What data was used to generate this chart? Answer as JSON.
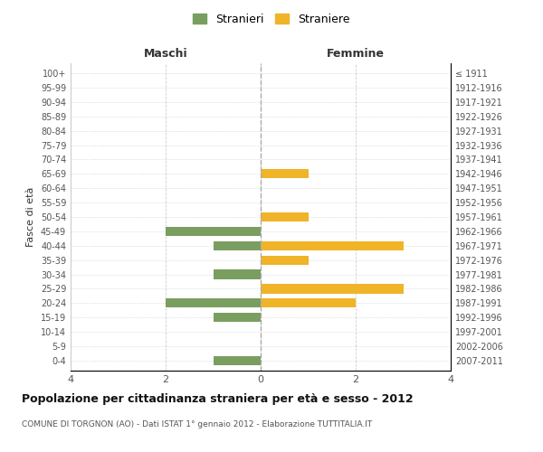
{
  "age_groups": [
    "100+",
    "95-99",
    "90-94",
    "85-89",
    "80-84",
    "75-79",
    "70-74",
    "65-69",
    "60-64",
    "55-59",
    "50-54",
    "45-49",
    "40-44",
    "35-39",
    "30-34",
    "25-29",
    "20-24",
    "15-19",
    "10-14",
    "5-9",
    "0-4"
  ],
  "birth_years": [
    "≤ 1911",
    "1912-1916",
    "1917-1921",
    "1922-1926",
    "1927-1931",
    "1932-1936",
    "1937-1941",
    "1942-1946",
    "1947-1951",
    "1952-1956",
    "1957-1961",
    "1962-1966",
    "1967-1971",
    "1972-1976",
    "1977-1981",
    "1982-1986",
    "1987-1991",
    "1992-1996",
    "1997-2001",
    "2002-2006",
    "2007-2011"
  ],
  "maschi": [
    0,
    0,
    0,
    0,
    0,
    0,
    0,
    0,
    0,
    0,
    0,
    2,
    1,
    0,
    1,
    0,
    2,
    1,
    0,
    0,
    1
  ],
  "femmine": [
    0,
    0,
    0,
    0,
    0,
    0,
    0,
    1,
    0,
    0,
    1,
    0,
    3,
    1,
    0,
    3,
    2,
    0,
    0,
    0,
    0
  ],
  "color_maschi": "#7a9e5f",
  "color_femmine": "#f0b429",
  "title": "Popolazione per cittadinanza straniera per età e sesso - 2012",
  "subtitle": "COMUNE DI TORGNON (AO) - Dati ISTAT 1° gennaio 2012 - Elaborazione TUTTITALIA.IT",
  "xlabel_left": "Maschi",
  "xlabel_right": "Femmine",
  "ylabel_left": "Fasce di età",
  "legend_maschi": "Stranieri",
  "legend_femmine": "Straniere",
  "xlim": 4,
  "background_color": "#ffffff",
  "grid_color": "#d0d0d0",
  "bar_height": 0.65
}
